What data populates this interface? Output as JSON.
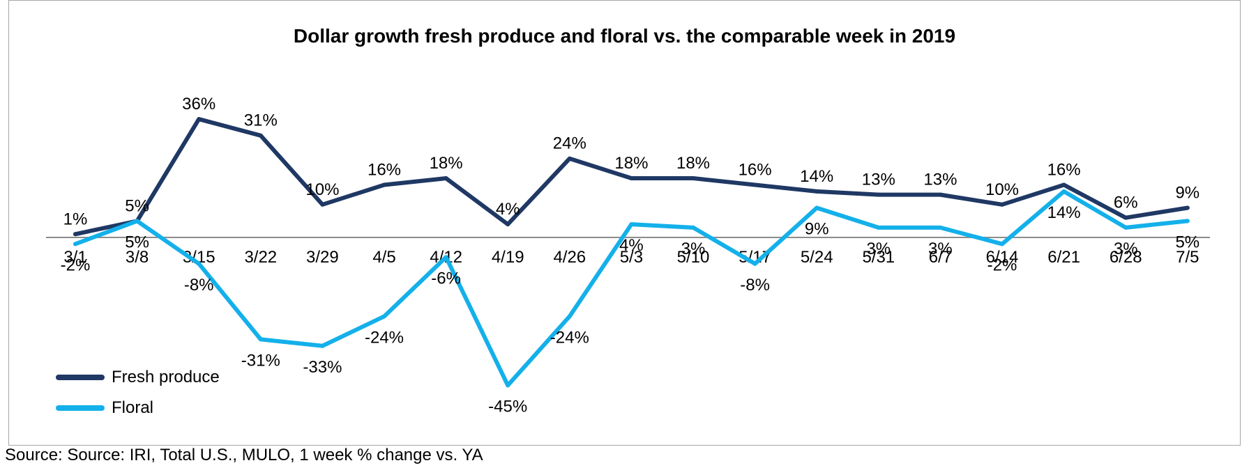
{
  "chart_data": {
    "type": "line",
    "title": "Dollar growth fresh produce and floral vs. the comparable week in 2019",
    "xlabel": "",
    "ylabel": "",
    "categories": [
      "3/1",
      "3/8",
      "3/15",
      "3/22",
      "3/29",
      "4/5",
      "4/12",
      "4/19",
      "4/26",
      "5/3",
      "5/10",
      "5/17",
      "5/24",
      "5/31",
      "6/7",
      "6/14",
      "6/21",
      "6/28",
      "7/5"
    ],
    "ylim": [
      -45,
      36
    ],
    "grid": false,
    "legend_position": "bottom-left",
    "series": [
      {
        "name": "Fresh produce",
        "color": "#1f3864",
        "values": [
          1,
          5,
          36,
          31,
          10,
          16,
          18,
          4,
          24,
          18,
          18,
          16,
          14,
          13,
          13,
          10,
          16,
          6,
          9
        ],
        "labels": [
          "1%",
          "5%",
          "36%",
          "31%",
          "10%",
          "16%",
          "18%",
          "4%",
          "24%",
          "18%",
          "18%",
          "16%",
          "14%",
          "13%",
          "13%",
          "10%",
          "16%",
          "6%",
          "9%"
        ]
      },
      {
        "name": "Floral",
        "color": "#14b0ea",
        "values": [
          -2,
          5,
          -8,
          -31,
          -33,
          -24,
          -6,
          -45,
          -24,
          4,
          3,
          -8,
          9,
          3,
          3,
          -2,
          14,
          3,
          5
        ],
        "labels": [
          "-2%",
          "5%",
          "-8%",
          "-31%",
          "-33%",
          "-24%",
          "-6%",
          "-45%",
          "-24%",
          "4%",
          "3%",
          "-8%",
          "9%",
          "3%",
          "3%",
          "-2%",
          "14%",
          "3%",
          "5%"
        ]
      }
    ]
  },
  "legend": {
    "items": [
      {
        "label": "Fresh produce",
        "color": "#1f3864"
      },
      {
        "label": "Floral",
        "color": "#14b0ea"
      }
    ]
  },
  "source_note": "Source: Source: IRI, Total U.S., MULO, 1 week % change vs. YA"
}
